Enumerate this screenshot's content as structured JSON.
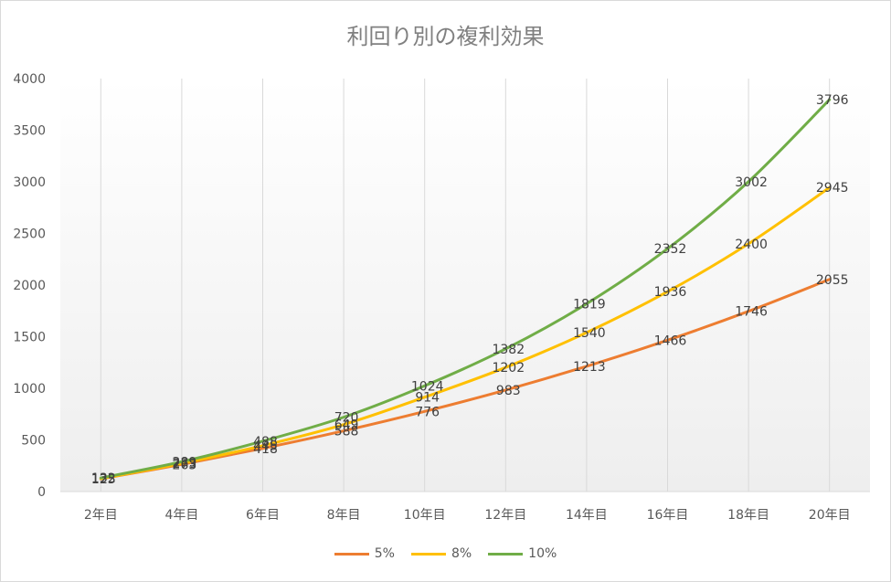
{
  "chart_data": {
    "type": "line",
    "title": "利回り別の複利効果",
    "categories": [
      "2年目",
      "4年目",
      "6年目",
      "8年目",
      "10年目",
      "12年目",
      "14年目",
      "16年目",
      "18年目",
      "20年目"
    ],
    "yticks": [
      "0",
      "500",
      "1000",
      "1500",
      "2000",
      "2500",
      "3000",
      "3500",
      "4000"
    ],
    "ylim": [
      0,
      4000
    ],
    "grid": "vertical",
    "legend_position": "bottom",
    "series": [
      {
        "name": "5%",
        "color": "#ed7d31",
        "values": [
          123,
          263,
          418,
          588,
          776,
          983,
          1213,
          1466,
          1746,
          2055
        ]
      },
      {
        "name": "8%",
        "color": "#ffc000",
        "values": [
          125,
          273,
          445,
          649,
          914,
          1202,
          1540,
          1936,
          2400,
          2945
        ]
      },
      {
        "name": "10%",
        "color": "#70ad47",
        "values": [
          132,
          289,
          488,
          720,
          1024,
          1382,
          1819,
          2352,
          3002,
          3796
        ]
      }
    ]
  }
}
